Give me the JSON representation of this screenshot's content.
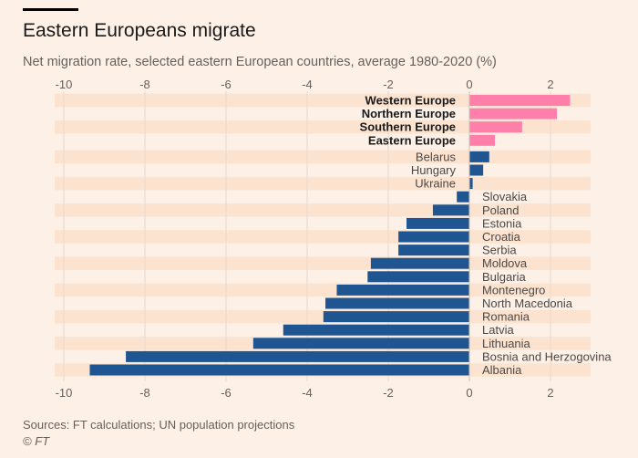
{
  "header": {
    "title": "Eastern Europeans migrate",
    "subtitle": "Net migration rate, selected eastern European countries, average 1980-2020 (%)"
  },
  "footer": {
    "source": "Sources: FT calculations; UN population projections",
    "credit": "© FT"
  },
  "colors": {
    "region": "#ff7fab",
    "country": "#1f5591",
    "band": "#fce3cf",
    "grid": "#e8d9cc",
    "background": "#fdf0e6"
  },
  "chart_data": {
    "type": "bar",
    "orientation": "horizontal",
    "title": "Eastern Europeans migrate",
    "xlabel": "",
    "ylabel": "",
    "xlim": [
      -10,
      2.8
    ],
    "xticks": [
      -10,
      -8,
      -6,
      -4,
      -2,
      0,
      2
    ],
    "xtick_labels": [
      "-10",
      "-8",
      "-6",
      "-4",
      "-2",
      "0",
      "2"
    ],
    "grid": true,
    "categories": [
      "Western Europe",
      "Northern Europe",
      "Southern Europe",
      "Eastern Europe",
      "Belarus",
      "Hungary",
      "Ukraine",
      "Slovakia",
      "Poland",
      "Estonia",
      "Croatia",
      "Serbia",
      "Moldova",
      "Bulgaria",
      "Montenegro",
      "North Macedonia",
      "Romania",
      "Latvia",
      "Lithuania",
      "Bosnia and Herzogovina",
      "Albania"
    ],
    "values": [
      2.48,
      2.16,
      1.3,
      0.63,
      0.49,
      0.34,
      0.08,
      -0.31,
      -0.9,
      -1.55,
      -1.75,
      -1.75,
      -2.43,
      -2.51,
      -3.27,
      -3.55,
      -3.6,
      -4.59,
      -5.33,
      -8.47,
      -9.36
    ],
    "group": [
      "region",
      "region",
      "region",
      "region",
      "country",
      "country",
      "country",
      "country",
      "country",
      "country",
      "country",
      "country",
      "country",
      "country",
      "country",
      "country",
      "country",
      "country",
      "country",
      "country",
      "country"
    ]
  }
}
